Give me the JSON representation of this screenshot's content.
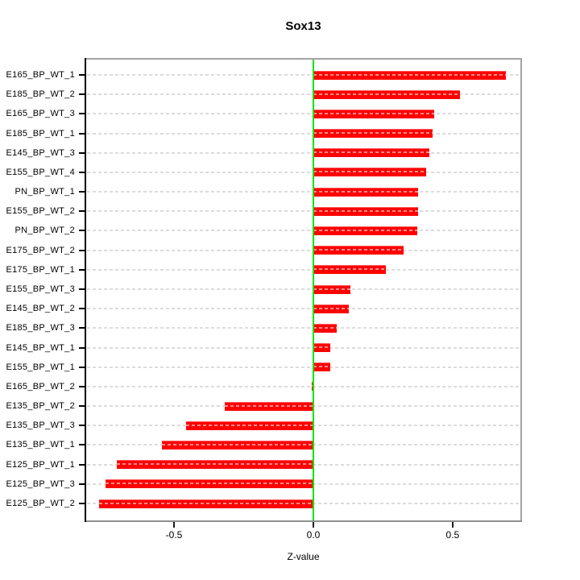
{
  "title": "Sox13",
  "chart_data": {
    "type": "bar",
    "orientation": "horizontal",
    "title": "Sox13",
    "xlabel": "Z-value",
    "categories": [
      "E165_BP_WT_1",
      "E185_BP_WT_2",
      "E165_BP_WT_3",
      "E185_BP_WT_1",
      "E145_BP_WT_3",
      "E155_BP_WT_4",
      "PN_BP_WT_1",
      "E155_BP_WT_2",
      "PN_BP_WT_2",
      "E175_BP_WT_2",
      "E175_BP_WT_1",
      "E155_BP_WT_3",
      "E145_BP_WT_2",
      "E185_BP_WT_3",
      "E145_BP_WT_1",
      "E155_BP_WT_1",
      "E165_BP_WT_2",
      "E135_BP_WT_2",
      "E135_BP_WT_3",
      "E135_BP_WT_1",
      "E125_BP_WT_1",
      "E125_BP_WT_3",
      "E125_BP_WT_2"
    ],
    "values": [
      0.69,
      0.525,
      0.435,
      0.428,
      0.416,
      0.405,
      0.376,
      0.376,
      0.372,
      0.324,
      0.26,
      0.133,
      0.127,
      0.084,
      0.06,
      0.06,
      -0.006,
      -0.318,
      -0.457,
      -0.543,
      -0.705,
      -0.746,
      -0.769
    ],
    "xlim": [
      -0.821,
      0.749
    ],
    "xticks": [
      -0.5,
      0.0,
      0.5
    ],
    "xtick_labels": [
      "-0.5",
      "0.0",
      "0.5"
    ],
    "grid": "horizontal-dashed-per-row",
    "legend": "none",
    "colors": {
      "bar": "#ff0000",
      "zero_line": "#00e400",
      "grid": "#dcdcdc",
      "grid_on_bar": "rgba(255,255,255,0.55)",
      "box": "#a3a3a3",
      "axis": "#000000"
    }
  }
}
